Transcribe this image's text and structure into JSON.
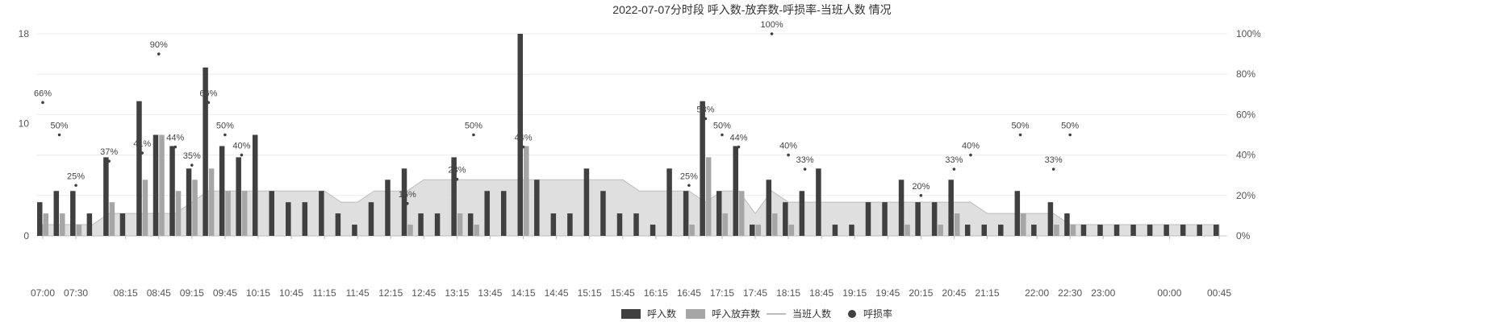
{
  "chart_data": {
    "type": "bar",
    "title": "2022-07-07分时段 呼入数-放弃数-呼损率-当班人数 情况",
    "x": [
      "07:00",
      "07:15",
      "07:30",
      "07:45",
      "08:00",
      "08:15",
      "08:30",
      "08:45",
      "09:00",
      "09:15",
      "09:30",
      "09:45",
      "10:00",
      "10:15",
      "10:30",
      "10:45",
      "11:00",
      "11:15",
      "11:30",
      "11:45",
      "12:00",
      "12:15",
      "12:30",
      "12:45",
      "13:00",
      "13:15",
      "13:30",
      "13:45",
      "14:00",
      "14:15",
      "14:30",
      "14:45",
      "15:00",
      "15:15",
      "15:30",
      "15:45",
      "16:00",
      "16:15",
      "16:30",
      "16:45",
      "17:00",
      "17:15",
      "17:30",
      "17:45",
      "18:00",
      "18:15",
      "18:30",
      "18:45",
      "19:00",
      "19:15",
      "19:30",
      "19:45",
      "20:00",
      "20:15",
      "20:30",
      "20:45",
      "21:00",
      "21:15",
      "21:30",
      "21:45",
      "22:00",
      "22:15",
      "22:30",
      "22:45",
      "23:00",
      "23:15",
      "23:30",
      "23:45",
      "00:00",
      "00:15",
      "00:30",
      "00:45"
    ],
    "xtick_labels": [
      "07:00",
      "07:30",
      "08:15",
      "08:45",
      "09:15",
      "09:45",
      "10:15",
      "10:45",
      "11:15",
      "11:45",
      "12:15",
      "12:45",
      "13:15",
      "13:45",
      "14:15",
      "14:45",
      "15:15",
      "15:45",
      "16:15",
      "16:45",
      "17:15",
      "17:45",
      "18:15",
      "18:45",
      "19:15",
      "19:45",
      "20:15",
      "20:45",
      "21:15",
      "22:00",
      "22:30",
      "23:00",
      "00:00",
      "00:45"
    ],
    "series": [
      {
        "name": "呼入数",
        "kind": "bar",
        "color": "#404040",
        "values": [
          3,
          4,
          4,
          2,
          7,
          2,
          12,
          9,
          8,
          6,
          15,
          8,
          7,
          9,
          4,
          3,
          3,
          4,
          2,
          1,
          3,
          5,
          6,
          2,
          2,
          7,
          2,
          4,
          4,
          18,
          5,
          2,
          2,
          6,
          4,
          2,
          2,
          1,
          6,
          4,
          12,
          4,
          8,
          1,
          5,
          3,
          4,
          6,
          1,
          1,
          3,
          3,
          5,
          3,
          3,
          5,
          1,
          1,
          1,
          4,
          1,
          3,
          2,
          1,
          1,
          1,
          1,
          1,
          1,
          1,
          1,
          1
        ]
      },
      {
        "name": "呼入放弃数",
        "kind": "bar",
        "color": "#a6a6a6",
        "values": [
          2,
          2,
          1,
          0,
          3,
          0,
          5,
          9,
          4,
          5,
          6,
          4,
          4,
          0,
          0,
          0,
          0,
          0,
          0,
          0,
          0,
          0,
          1,
          0,
          0,
          2,
          1,
          0,
          0,
          8,
          0,
          0,
          0,
          0,
          0,
          0,
          0,
          0,
          0,
          1,
          7,
          2,
          4,
          1,
          2,
          1,
          0,
          0,
          0,
          0,
          0,
          0,
          1,
          0,
          1,
          2,
          0,
          0,
          0,
          2,
          0,
          1,
          1,
          0,
          0,
          0,
          0,
          0,
          0,
          0,
          0,
          0
        ]
      },
      {
        "name": "当班人数",
        "kind": "area",
        "color": "#d9d9d9",
        "values": [
          1,
          1,
          1,
          1,
          2,
          2,
          2,
          2,
          2,
          3,
          4,
          4,
          4,
          4,
          4,
          4,
          4,
          4,
          3,
          3,
          4,
          4,
          4,
          5,
          5,
          5,
          5,
          5,
          5,
          5,
          5,
          5,
          5,
          5,
          5,
          5,
          4,
          4,
          4,
          4,
          3,
          4,
          4,
          2,
          4,
          3,
          3,
          3,
          3,
          3,
          3,
          3,
          3,
          3,
          3,
          3,
          3,
          2,
          2,
          2,
          2,
          2,
          1,
          1,
          1,
          1,
          1,
          1,
          1,
          1,
          1,
          1
        ]
      },
      {
        "name": "呼损率",
        "kind": "scatter",
        "color": "#404040",
        "points": [
          [
            0,
            66
          ],
          [
            1,
            50
          ],
          [
            2,
            25
          ],
          [
            4,
            37
          ],
          [
            6,
            41
          ],
          [
            7,
            90
          ],
          [
            8,
            44
          ],
          [
            9,
            35
          ],
          [
            10,
            66
          ],
          [
            11,
            50
          ],
          [
            12,
            40
          ],
          [
            22,
            16
          ],
          [
            25,
            28
          ],
          [
            26,
            50
          ],
          [
            29,
            44
          ],
          [
            39,
            25
          ],
          [
            40,
            58
          ],
          [
            41,
            50
          ],
          [
            42,
            44
          ],
          [
            44,
            100
          ],
          [
            45,
            40
          ],
          [
            46,
            33
          ],
          [
            53,
            20
          ],
          [
            55,
            33
          ],
          [
            56,
            40
          ],
          [
            59,
            50
          ],
          [
            61,
            33
          ],
          [
            62,
            50
          ]
        ]
      }
    ],
    "y_left": {
      "min": 0,
      "max": 18,
      "ticks": [
        0,
        10,
        18
      ]
    },
    "y_right": {
      "min": 0,
      "max": 100,
      "ticks": [
        "0%",
        "20%",
        "40%",
        "60%",
        "80%",
        "100%"
      ]
    },
    "xlabel": "",
    "ylabel": "",
    "grid": true,
    "legend_position": "bottom"
  }
}
